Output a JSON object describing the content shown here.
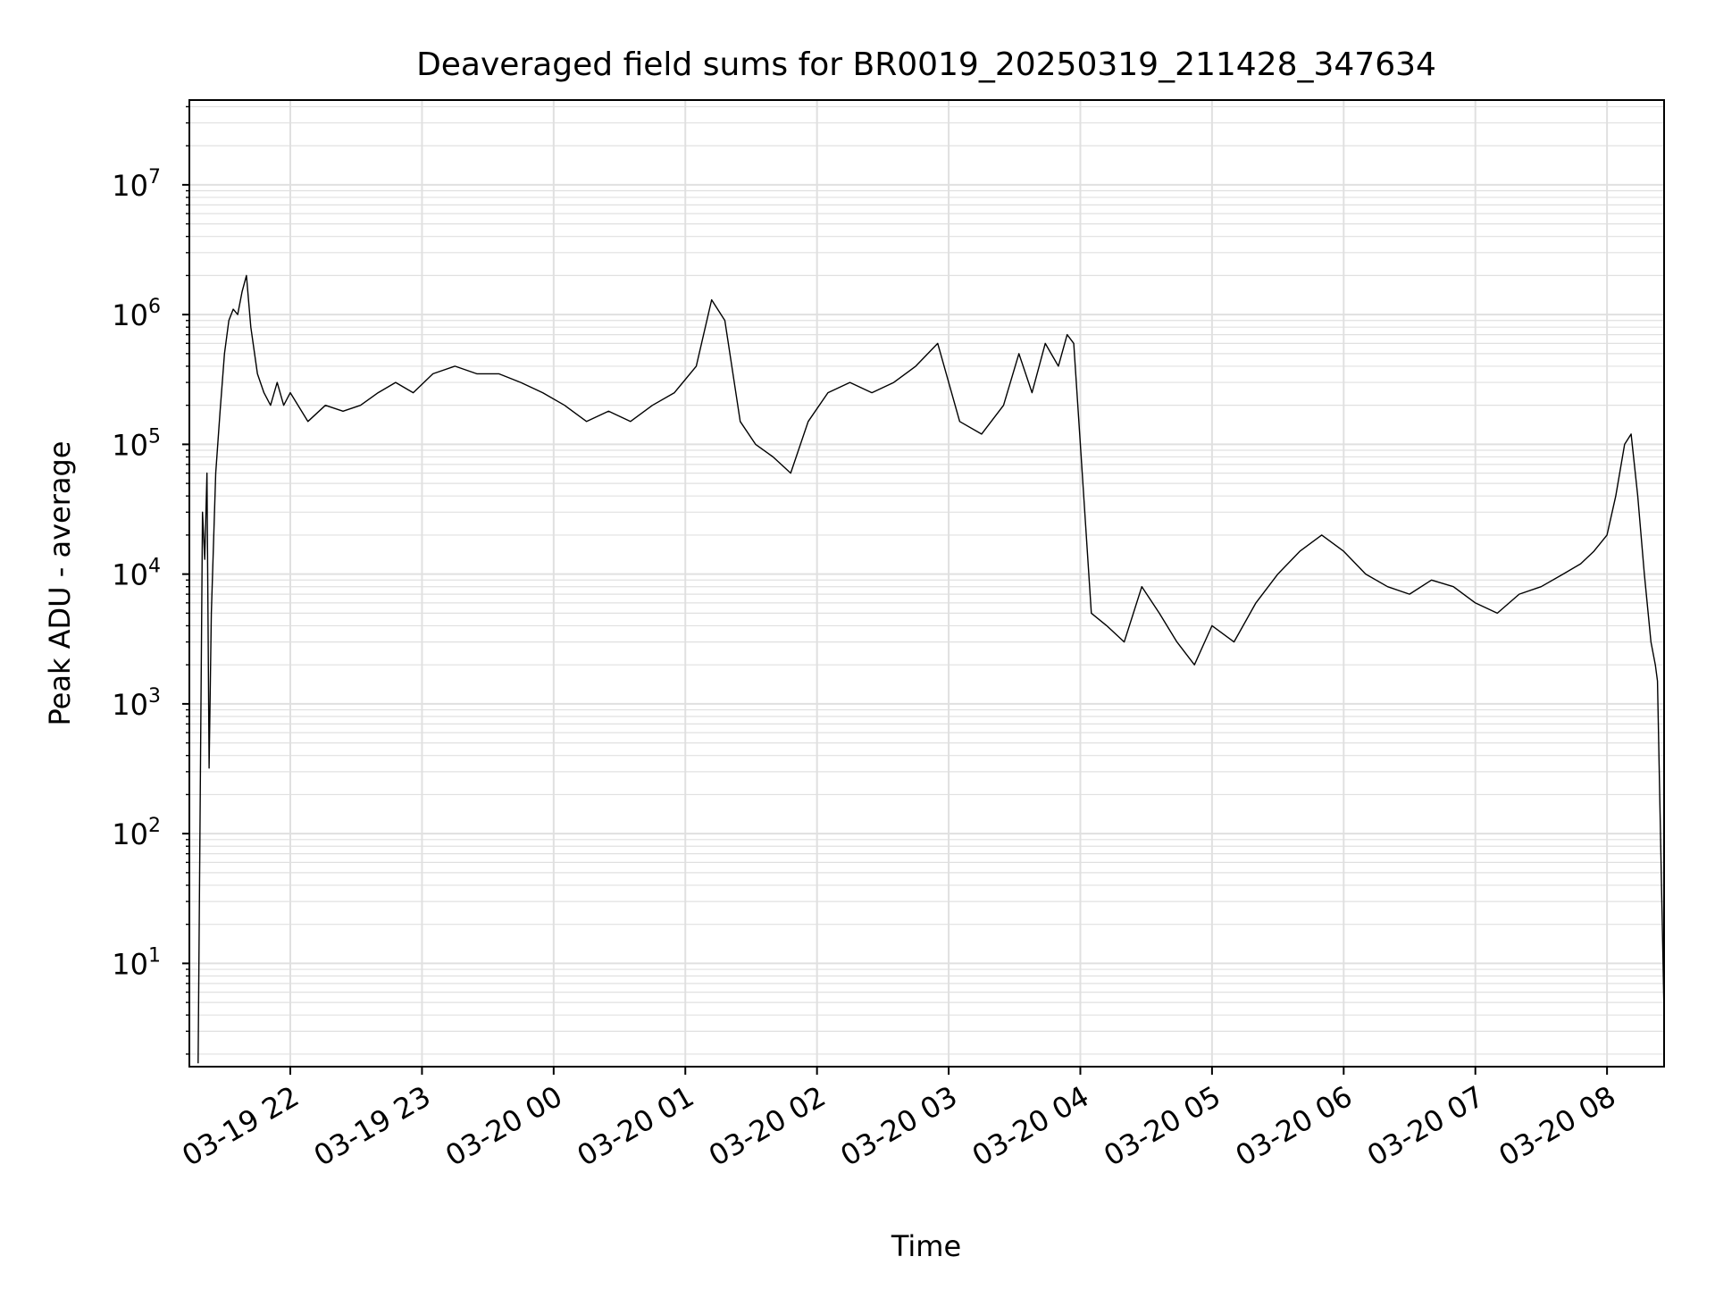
{
  "chart_data": {
    "type": "line",
    "title": "Deaveraged field sums for BR0019_20250319_211428_347634",
    "xlabel": "Time",
    "ylabel": "Peak ADU - average",
    "yscale": "log",
    "grid": "on (major and minor)",
    "legend": "none",
    "line_color": "#000000",
    "grid_color": "#e0e0e0",
    "xlim": [
      "03-19 21:14",
      "03-20 08:26"
    ],
    "ylim": [
      1.6,
      45000000
    ],
    "x_ticks": [
      "03-19 22",
      "03-19 23",
      "03-20 00",
      "03-20 01",
      "03-20 02",
      "03-20 03",
      "03-20 04",
      "03-20 05",
      "03-20 06",
      "03-20 07",
      "03-20 08"
    ],
    "y_ticks": [
      {
        "base": "10",
        "exp": "1",
        "value": 10
      },
      {
        "base": "10",
        "exp": "2",
        "value": 100
      },
      {
        "base": "10",
        "exp": "3",
        "value": 1000
      },
      {
        "base": "10",
        "exp": "4",
        "value": 10000
      },
      {
        "base": "10",
        "exp": "5",
        "value": 100000
      },
      {
        "base": "10",
        "exp": "6",
        "value": 1000000
      },
      {
        "base": "10",
        "exp": "7",
        "value": 10000000
      }
    ],
    "series": [
      {
        "x": [
          "03-19 21:18",
          "03-19 21:20",
          "03-19 21:21",
          "03-19 21:22",
          "03-19 21:23",
          "03-19 21:24",
          "03-19 21:26",
          "03-19 21:28",
          "03-19 21:30",
          "03-19 21:32",
          "03-19 21:34",
          "03-19 21:36",
          "03-19 21:38",
          "03-19 21:40",
          "03-19 21:42",
          "03-19 21:45",
          "03-19 21:48",
          "03-19 21:51",
          "03-19 21:54",
          "03-19 21:57",
          "03-19 22:00",
          "03-19 22:08",
          "03-19 22:16",
          "03-19 22:24",
          "03-19 22:32",
          "03-19 22:40",
          "03-19 22:48",
          "03-19 22:56",
          "03-19 23:05",
          "03-19 23:15",
          "03-19 23:25",
          "03-19 23:35",
          "03-19 23:45",
          "03-19 23:55",
          "03-20 00:05",
          "03-20 00:15",
          "03-20 00:25",
          "03-20 00:35",
          "03-20 00:45",
          "03-20 00:55",
          "03-20 01:05",
          "03-20 01:12",
          "03-20 01:18",
          "03-20 01:25",
          "03-20 01:32",
          "03-20 01:40",
          "03-20 01:48",
          "03-20 01:56",
          "03-20 02:05",
          "03-20 02:15",
          "03-20 02:25",
          "03-20 02:35",
          "03-20 02:45",
          "03-20 02:55",
          "03-20 03:05",
          "03-20 03:15",
          "03-20 03:25",
          "03-20 03:32",
          "03-20 03:38",
          "03-20 03:44",
          "03-20 03:50",
          "03-20 03:54",
          "03-20 03:57",
          "03-20 04:00",
          "03-20 04:05",
          "03-20 04:12",
          "03-20 04:20",
          "03-20 04:28",
          "03-20 04:36",
          "03-20 04:44",
          "03-20 04:52",
          "03-20 05:00",
          "03-20 05:10",
          "03-20 05:20",
          "03-20 05:30",
          "03-20 05:40",
          "03-20 05:50",
          "03-20 06:00",
          "03-20 06:10",
          "03-20 06:20",
          "03-20 06:30",
          "03-20 06:40",
          "03-20 06:50",
          "03-20 07:00",
          "03-20 07:10",
          "03-20 07:20",
          "03-20 07:30",
          "03-20 07:40",
          "03-20 07:48",
          "03-20 07:54",
          "03-20 08:00",
          "03-20 08:04",
          "03-20 08:08",
          "03-20 08:11",
          "03-20 08:14",
          "03-20 08:17",
          "03-20 08:20",
          "03-20 08:22",
          "03-20 08:23",
          "03-20 08:24",
          "03-20 08:26"
        ],
        "y": [
          1.7,
          30000,
          13000,
          60000,
          320,
          5000,
          60000,
          180000,
          500000,
          900000,
          1100000,
          1000000,
          1500000,
          2000000,
          800000,
          350000,
          250000,
          200000,
          300000,
          200000,
          250000,
          150000,
          200000,
          180000,
          200000,
          250000,
          300000,
          250000,
          350000,
          400000,
          350000,
          350000,
          300000,
          250000,
          200000,
          150000,
          180000,
          150000,
          200000,
          250000,
          400000,
          1300000,
          900000,
          150000,
          100000,
          80000,
          60000,
          150000,
          250000,
          300000,
          250000,
          300000,
          400000,
          600000,
          150000,
          120000,
          200000,
          500000,
          250000,
          600000,
          400000,
          700000,
          600000,
          100000,
          5000,
          4000,
          3000,
          8000,
          5000,
          3000,
          2000,
          4000,
          3000,
          6000,
          10000,
          15000,
          20000,
          15000,
          10000,
          8000,
          7000,
          9000,
          8000,
          6000,
          5000,
          7000,
          8000,
          10000,
          12000,
          15000,
          20000,
          40000,
          100000,
          120000,
          40000,
          10000,
          3000,
          2000,
          1500,
          200,
          4
        ]
      }
    ]
  }
}
